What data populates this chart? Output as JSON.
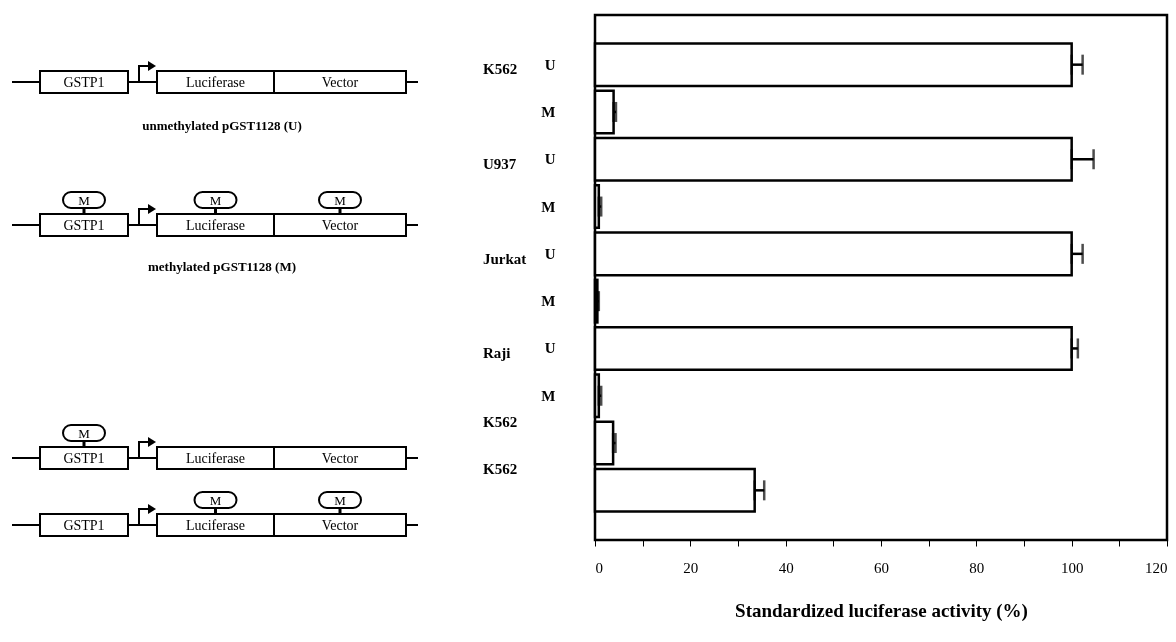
{
  "chart_data": {
    "type": "bar",
    "orientation": "horizontal",
    "xlabel": "Standardized luciferase activity (%)",
    "categories": [
      "U",
      "M",
      "U",
      "M",
      "U",
      "M",
      "U",
      "M",
      null,
      null
    ],
    "values": [
      100,
      3.9,
      100,
      0.8,
      100,
      0.5,
      100,
      0.8,
      3.8,
      33.5
    ],
    "errors": [
      [
        100,
        102.3
      ],
      [
        3.9,
        4.4
      ],
      [
        100,
        104.6
      ],
      [
        0.8,
        1.3
      ],
      [
        100,
        102.3
      ],
      [
        0.5,
        0.8
      ],
      [
        100,
        101.3
      ],
      [
        0.8,
        1.3
      ],
      [
        3.8,
        4.3
      ],
      [
        33.5,
        35.5
      ]
    ],
    "colors": [
      "#ffffff",
      "#ffffff",
      "#ffffff",
      "#ffffff",
      "#ffffff",
      "#ffffff",
      "#ffffff",
      "#ffffff",
      "#ffffff",
      "#ffffff"
    ],
    "xlim": [
      0,
      120
    ],
    "xticks": [
      0,
      {
        "value": 10,
        "label": null
      },
      20,
      {
        "value": 30,
        "label": null
      },
      40,
      {
        "value": 50,
        "label": null
      },
      60,
      {
        "value": 70,
        "label": null
      },
      80,
      {
        "value": 90,
        "label": null
      },
      100,
      {
        "value": 110,
        "label": null
      },
      120
    ],
    "grid": false,
    "annotations": [
      "K562",
      "U937",
      "Jurkat",
      "Raji",
      "K562",
      "K562",
      "GSTP1",
      "Luciferase",
      "Vector",
      "M",
      "unmethylated pGST1128 (U)",
      "methylated pGST1128 (M)"
    ]
  }
}
